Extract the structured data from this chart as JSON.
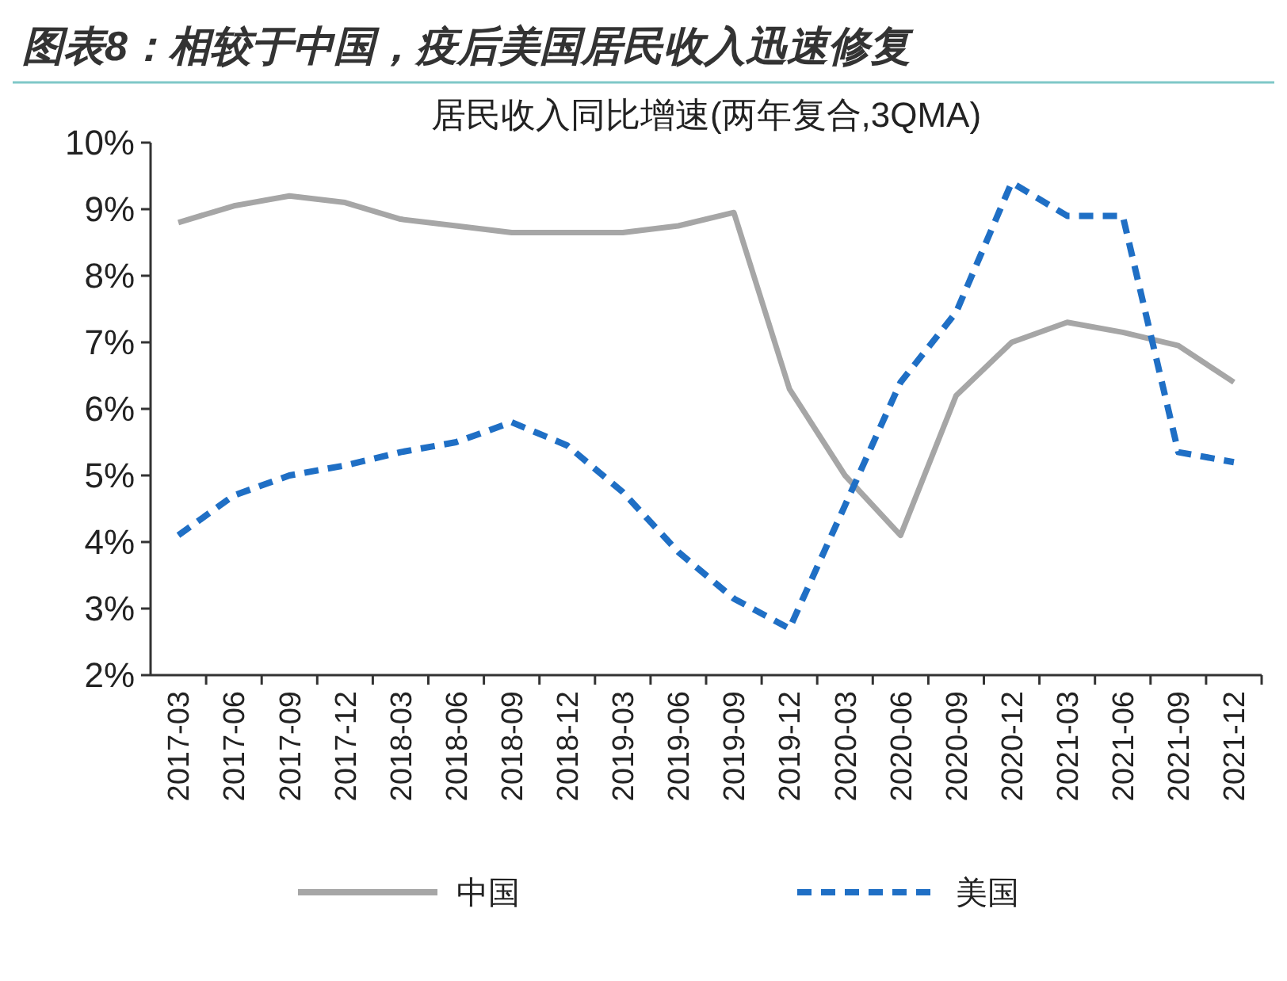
{
  "chart_data": {
    "type": "line",
    "title": "图表8：相较于中国，疫后美国居民收入迅速修复",
    "subtitle": "居民收入同比增速(两年复合,3QMA)",
    "categories": [
      "2017-03",
      "2017-06",
      "2017-09",
      "2017-12",
      "2018-03",
      "2018-06",
      "2018-09",
      "2018-12",
      "2019-03",
      "2019-06",
      "2019-09",
      "2019-12",
      "2020-03",
      "2020-06",
      "2020-09",
      "2020-12",
      "2021-03",
      "2021-06",
      "2021-09",
      "2021-12"
    ],
    "series": [
      {
        "name": "中国",
        "color": "#a6a6a6",
        "line_style": "solid",
        "values": [
          8.8,
          9.05,
          9.2,
          9.1,
          8.85,
          8.75,
          8.65,
          8.65,
          8.65,
          8.75,
          8.95,
          6.3,
          5.0,
          4.1,
          6.2,
          7.0,
          7.3,
          7.15,
          6.95,
          6.4
        ]
      },
      {
        "name": "美国",
        "color": "#1f6fc5",
        "line_style": "dashed",
        "values": [
          4.1,
          4.7,
          5.0,
          5.15,
          5.35,
          5.5,
          5.8,
          5.45,
          4.75,
          3.85,
          3.15,
          2.7,
          4.55,
          6.4,
          7.45,
          9.4,
          8.9,
          8.9,
          5.35,
          5.2
        ]
      }
    ],
    "ylim": [
      2,
      10
    ],
    "yticks": [
      {
        "value": 2,
        "label": "2%"
      },
      {
        "value": 3,
        "label": "3%"
      },
      {
        "value": 4,
        "label": "4%"
      },
      {
        "value": 5,
        "label": "5%"
      },
      {
        "value": 6,
        "label": "6%"
      },
      {
        "value": 7,
        "label": "7%"
      },
      {
        "value": 8,
        "label": "8%"
      },
      {
        "value": 9,
        "label": "9%"
      },
      {
        "value": 10,
        "label": "10%"
      }
    ],
    "grid": false,
    "legend": "bottom"
  }
}
